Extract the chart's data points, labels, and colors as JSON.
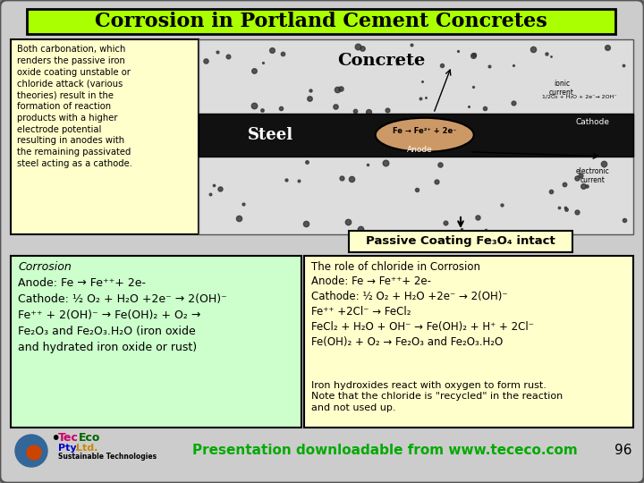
{
  "title": "Corrosion in Portland Cement Concretes",
  "title_bg": "#aaff00",
  "title_color": "#000000",
  "slide_bg": "#999999",
  "outer_bg": "#808080",
  "left_box_bg": "#ffffcc",
  "left_box_text": "Both carbonation, which\nrenders the passive iron\noxide coating unstable or\nchloride attack (various\ntheories) result in the\nformation of reaction\nproducts with a higher\nelectrode potential\nresulting in anodes with\nthe remaining passivated\nsteel acting as a cathode.",
  "corrosion_box_bg": "#ccffcc",
  "corrosion_title": "Corrosion",
  "corrosion_line1": "Anode: Fe → Fe⁺⁺+ 2e-",
  "corrosion_line2": "Cathode: ½ O₂ + H₂O +2e⁻ → 2(OH)⁻",
  "corrosion_line3": "Fe⁺⁺ + 2(OH)⁻ → Fe(OH)₂ + O₂ →",
  "corrosion_line4": "Fe₂O₃ and Fe₂O₃.H₂O (iron oxide",
  "corrosion_line5": "and hydrated iron oxide or rust)",
  "passive_box_bg": "#ffffcc",
  "passive_text": "Passive Coating Fe₃O₄ intact",
  "chloride_box_bg": "#ffffcc",
  "chloride_title": "The role of chloride in Corrosion",
  "chloride_line1": "Anode: Fe → Fe⁺⁺+ 2e-",
  "chloride_line2": "Cathode: ½ O₂ + H₂O +2e⁻ → 2(OH)⁻",
  "chloride_line3": "Fe⁺⁺ +2Cl⁻ → FeCl₂",
  "chloride_line4": "FeCl₂ + H₂O + OH⁻ → Fe(OH)₂ + H⁺ + 2Cl⁻",
  "chloride_line5": "Fe(OH)₂ + O₂ → Fe₂O₃ and Fe₂O₃.H₂O",
  "chloride_note": "Iron hydroxides react with oxygen to form rust.\nNote that the chloride is \"recycled\" in the reaction\nand not used up.",
  "footer_text": "Presentation downloadable from www.tececo.com",
  "footer_color": "#00aa00",
  "page_num": "96",
  "concrete_label": "Concrete",
  "steel_label": "Steel"
}
